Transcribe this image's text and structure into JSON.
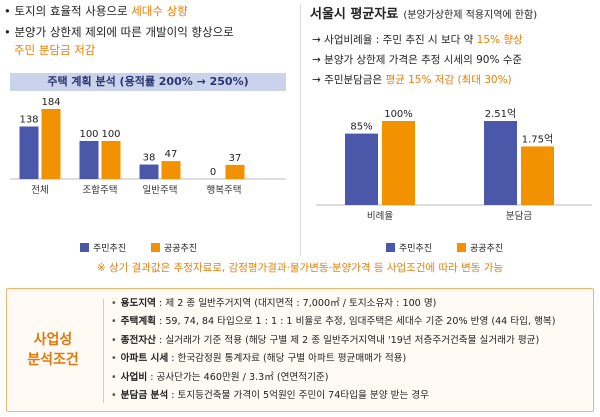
{
  "left": {
    "bullet1_prefix": "토지의 효율적 사용으로 ",
    "bullet1_highlight": "세대수 상향",
    "bullet2_line1": "분양가 상한제 제외에 따른 개발이익 향상으로",
    "bullet2_line2": "주민 분담금 저감",
    "bullet_marker": "•"
  },
  "right": {
    "title_main": "서울시 평균자료",
    "title_sub": "(분양가상한제 적용지역에 한함)",
    "arrow": "→",
    "line1_prefix": "사업비례율 : 주민 추진 시 보다 약 ",
    "line1_highlight": "15% 향상",
    "line2": "분양가 상한제 가격은 추정 시세의 90% 수준",
    "line3_prefix": "주민분담금은 ",
    "line3_highlight": "평균 15% 저감 (최대 30%)"
  },
  "colors": {
    "navy": "#4b57a8",
    "orange": "#f39200"
  },
  "legend": {
    "series1": "주민추진",
    "series2": "공공추진"
  },
  "chart_data": [
    {
      "type": "bar",
      "title": "주택 계획 분석 (용적률 200% → 250%)",
      "categories": [
        "전체",
        "조합주택",
        "일반주택",
        "행복주택"
      ],
      "series": [
        {
          "name": "주민추진",
          "values": [
            138,
            100,
            38,
            0
          ]
        },
        {
          "name": "공공추진",
          "values": [
            184,
            100,
            47,
            37
          ]
        }
      ],
      "ylim": [
        0,
        200
      ]
    },
    {
      "type": "bar",
      "title": "",
      "categories": [
        "비례율",
        "분담금"
      ],
      "series": [
        {
          "name": "주민추진",
          "values": [
            85,
            2.51
          ],
          "labels": [
            "85%",
            "2.51억"
          ]
        },
        {
          "name": "공공추진",
          "values": [
            100,
            1.75
          ],
          "labels": [
            "100%",
            "1.75억"
          ]
        }
      ]
    }
  ],
  "note": "※ 상기 결과값은 추정자료로, 감정평가결과·물가변동·분양가격 등 사업조건에 따라 변동 가능",
  "conditions": {
    "title_line1": "사업성",
    "title_line2": "분석조건",
    "items": [
      {
        "key": "용도지역",
        "text": " : 제 2 종 일반주거지역 (대지면적 : 7,000㎡ / 토지소유자 : 100 명)"
      },
      {
        "key": "주택계획",
        "text": " : 59, 74, 84 타입으로 1 : 1 : 1 비율로 추정, 임대주택은 세대수 기준 20% 반영 (44 타입, 행복)"
      },
      {
        "key": "종전자산",
        "text": " : 실거래가 기준 적용 (해당 구별 제 2 종 일반주거지역내 '19년 저층주거건축물 실거래가 평균)"
      },
      {
        "key": "아파트 시세",
        "text": " : 한국감정원 통계자료 (해당 구별 아파트 평균매매가 적용)"
      },
      {
        "key": "사업비",
        "text": " : 공사단가는 460만원 / 3.3㎡ (연면적기준)"
      },
      {
        "key": "분담금 분석",
        "text": " : 토지등건축물 가격이 5억원인 주민이 74타입을 분양 받는 경우"
      }
    ]
  }
}
